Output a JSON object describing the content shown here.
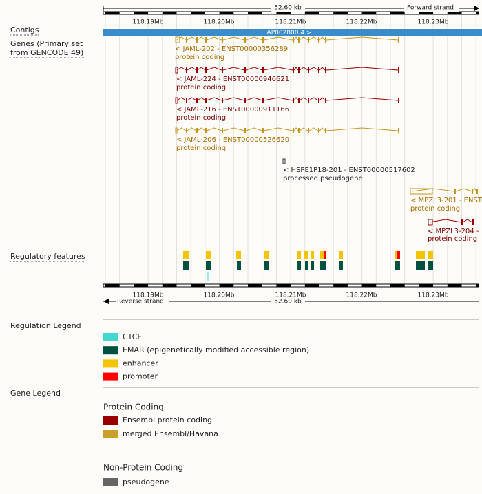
{
  "track": {
    "length_label": "52.60 kb",
    "forward_strand": "Forward strand",
    "reverse_strand": "Reverse strand",
    "ticks": [
      "118.19Mb",
      "118.20Mb",
      "118.21Mb",
      "118.22Mb",
      "118.23Mb"
    ],
    "contigs_label": "Contigs",
    "contig": "AP002800.4 >",
    "genes_label": [
      "Genes (Primary set",
      "from GENCODE 49)"
    ],
    "genes": [
      {
        "label": "< JAML-202 - ENST00000356289",
        "biotype": "protein coding"
      },
      {
        "label": "< JAML-224 - ENST00000946621",
        "biotype": "protein coding"
      },
      {
        "label": "< JAML-216 - ENST00000911166",
        "biotype": "protein coding"
      },
      {
        "label": "< JAML-206 - ENST00000526620",
        "biotype": "protein coding"
      },
      {
        "label": "< HSPE1P18-201 - ENST00000517602",
        "biotype": "processed pseudogene"
      },
      {
        "label": "< MPZL3-201 - ENST",
        "biotype": "protein coding"
      },
      {
        "label": "< MPZL3-204 -",
        "biotype": "protein coding"
      }
    ],
    "regulatory_label": "Regulatory features"
  },
  "regulation_legend": {
    "title": "Regulation Legend",
    "items": [
      "CTCF",
      "EMAR (epigenetically modified accessible region)",
      "enhancer",
      "promoter"
    ]
  },
  "gene_legend": {
    "title": "Gene Legend",
    "protein_coding": {
      "title": "Protein Coding",
      "items": [
        "Ensembl protein coding",
        "merged Ensembl/Havana"
      ]
    },
    "non_protein_coding": {
      "title": "Non-Protein Coding",
      "items": [
        "pseudogene"
      ]
    }
  }
}
